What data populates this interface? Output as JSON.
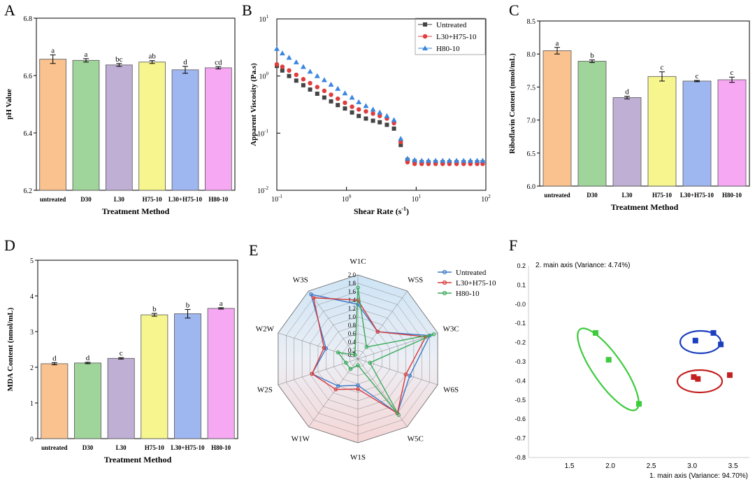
{
  "colors": {
    "untreated": "#f9c28f",
    "d30": "#9fd49a",
    "l30": "#c0afd5",
    "h75": "#f7f58e",
    "l30h75": "#9fb7f0",
    "h80": "#f7a8f3",
    "series_untreated": "#3a78c8",
    "series_l30h75": "#d63a3a",
    "series_h80": "#3aaa5a",
    "visc_untreated": "#444444",
    "visc_l30h75": "#e03c3c",
    "visc_h80": "#3a86e0",
    "pca_green": "#3ecb3e",
    "pca_blue": "#1c3fbf",
    "pca_red": "#c42020"
  },
  "chart_data": [
    {
      "id": "A",
      "type": "bar",
      "panel_label": "A",
      "title": "",
      "xlabel": "Treatment Method",
      "ylabel": "pH  Value",
      "ylim": [
        6.2,
        6.8
      ],
      "yticks": [
        "6.2",
        "6.4",
        "6.6",
        "6.8"
      ],
      "categories": [
        "untreated",
        "D30",
        "L30",
        "H75-10",
        "L30+H75-10",
        "H80-10"
      ],
      "values": [
        6.657,
        6.653,
        6.637,
        6.647,
        6.62,
        6.627
      ],
      "errors": [
        0.015,
        0.006,
        0.005,
        0.005,
        0.012,
        0.004
      ],
      "letters": [
        "a",
        "a",
        "bc",
        "ab",
        "d",
        "cd"
      ],
      "colors": [
        "#f9c28f",
        "#9fd49a",
        "#c0afd5",
        "#f7f58e",
        "#9fb7f0",
        "#f7a8f3"
      ]
    },
    {
      "id": "B",
      "type": "scatter",
      "panel_label": "B",
      "xscale": "log",
      "yscale": "log",
      "xlabel": "Shear Rate (s",
      "xlabel_sup": "-1",
      "xlabel_end": ")",
      "ylabel": "Apparent Viscosity  (Pa.s)",
      "xlim": [
        0.1,
        100
      ],
      "ylim": [
        0.01,
        10
      ],
      "xticks": [
        {
          "v": 0.1,
          "base": "10",
          "exp": "-1"
        },
        {
          "v": 1,
          "base": "10",
          "exp": "0"
        },
        {
          "v": 10,
          "base": "10",
          "exp": "1"
        },
        {
          "v": 100,
          "base": "10",
          "exp": "2"
        }
      ],
      "yticks": [
        {
          "v": 0.01,
          "base": "10",
          "exp": "-2"
        },
        {
          "v": 0.1,
          "base": "10",
          "exp": "-1"
        },
        {
          "v": 1,
          "base": "10",
          "exp": "0"
        },
        {
          "v": 10,
          "base": "10",
          "exp": "1"
        }
      ],
      "legend": "top-right",
      "series": [
        {
          "name": "Untreated",
          "marker": "square",
          "color": "#444444",
          "x": [
            0.1,
            0.12,
            0.15,
            0.19,
            0.24,
            0.3,
            0.38,
            0.48,
            0.6,
            0.75,
            0.95,
            1.2,
            1.5,
            1.9,
            2.4,
            3.0,
            3.8,
            4.8,
            6.0,
            7.5,
            9.5,
            12,
            15,
            19,
            24,
            30,
            38,
            48,
            60,
            75,
            90
          ],
          "y": [
            1.5,
            1.25,
            1.0,
            0.83,
            0.69,
            0.58,
            0.49,
            0.42,
            0.36,
            0.31,
            0.27,
            0.23,
            0.2,
            0.18,
            0.165,
            0.155,
            0.14,
            0.12,
            0.062,
            0.034,
            0.032,
            0.031,
            0.031,
            0.031,
            0.031,
            0.031,
            0.031,
            0.031,
            0.031,
            0.031,
            0.031
          ]
        },
        {
          "name": "L30+H75-10",
          "marker": "circle",
          "color": "#e03c3c",
          "x": [
            0.1,
            0.12,
            0.15,
            0.19,
            0.24,
            0.3,
            0.38,
            0.48,
            0.6,
            0.75,
            0.95,
            1.2,
            1.5,
            1.9,
            2.4,
            3.0,
            3.8,
            4.8,
            6.0,
            7.5,
            9.5,
            12,
            15,
            19,
            24,
            30,
            38,
            48,
            60,
            75,
            90
          ],
          "y": [
            1.6,
            1.45,
            1.25,
            1.05,
            0.88,
            0.75,
            0.64,
            0.55,
            0.47,
            0.4,
            0.34,
            0.29,
            0.26,
            0.24,
            0.22,
            0.2,
            0.18,
            0.15,
            0.07,
            0.031,
            0.029,
            0.029,
            0.029,
            0.029,
            0.029,
            0.029,
            0.029,
            0.029,
            0.029,
            0.029,
            0.029
          ]
        },
        {
          "name": "H80-10",
          "marker": "triangle",
          "color": "#3a86e0",
          "x": [
            0.1,
            0.12,
            0.15,
            0.19,
            0.24,
            0.3,
            0.38,
            0.48,
            0.6,
            0.75,
            0.95,
            1.2,
            1.5,
            1.9,
            2.4,
            3.0,
            3.8,
            4.8,
            6.0,
            7.5,
            9.5,
            12,
            15,
            19,
            24,
            30,
            38,
            48,
            60,
            75,
            90
          ],
          "y": [
            3.0,
            2.5,
            2.1,
            1.75,
            1.45,
            1.2,
            1.0,
            0.85,
            0.71,
            0.6,
            0.5,
            0.42,
            0.35,
            0.3,
            0.26,
            0.23,
            0.2,
            0.17,
            0.08,
            0.036,
            0.034,
            0.033,
            0.033,
            0.033,
            0.033,
            0.033,
            0.033,
            0.033,
            0.033,
            0.033,
            0.033
          ]
        }
      ]
    },
    {
      "id": "C",
      "type": "bar",
      "panel_label": "C",
      "xlabel": "Treatment Method",
      "ylabel": "Riboflavin Content  (nmol/mL)",
      "ylim": [
        6.0,
        8.5
      ],
      "yticks": [
        "6.0",
        "6.5",
        "7.0",
        "7.5",
        "8.0",
        "8.5"
      ],
      "categories": [
        "untreated",
        "D30",
        "L30",
        "H75-10",
        "L30+H75-10",
        "H80-10"
      ],
      "values": [
        8.05,
        7.89,
        7.34,
        7.66,
        7.59,
        7.61
      ],
      "errors": [
        0.05,
        0.02,
        0.02,
        0.07,
        0.01,
        0.04
      ],
      "letters": [
        "a",
        "b",
        "d",
        "c",
        "c",
        "c"
      ],
      "colors": [
        "#f9c28f",
        "#9fd49a",
        "#c0afd5",
        "#f7f58e",
        "#9fb7f0",
        "#f7a8f3"
      ]
    },
    {
      "id": "D",
      "type": "bar",
      "panel_label": "D",
      "xlabel": "Treatment Method",
      "ylabel": "MDA Content  (nmol/mL)",
      "ylim": [
        0,
        5
      ],
      "yticks": [
        "0",
        "1",
        "2",
        "3",
        "4",
        "5"
      ],
      "categories": [
        "untreated",
        "D30",
        "L30",
        "H75-10",
        "L30+H75-10",
        "H80-10"
      ],
      "values": [
        2.1,
        2.12,
        2.25,
        3.47,
        3.5,
        3.65
      ],
      "errors": [
        0.03,
        0.02,
        0.02,
        0.04,
        0.12,
        0.02
      ],
      "letters": [
        "d",
        "d",
        "c",
        "b",
        "b",
        "a"
      ],
      "colors": [
        "#f9c28f",
        "#9fd49a",
        "#c0afd5",
        "#f7f58e",
        "#9fb7f0",
        "#f7a8f3"
      ]
    },
    {
      "id": "E",
      "type": "radar",
      "panel_label": "E",
      "axes": [
        "W1C",
        "W5S",
        "W3C",
        "W6S",
        "W5C",
        "W1S",
        "W1W",
        "W2S",
        "W2W",
        "W3S"
      ],
      "rlim": [
        0,
        2.0
      ],
      "rticks": [
        "0.1",
        "0.2",
        "0.4",
        "0.6",
        "0.8",
        "1.0",
        "1.2",
        "1.4",
        "1.6",
        "1.8",
        "2.0"
      ],
      "legend": "top-right",
      "series": [
        {
          "name": "Untreated",
          "color": "#3a78c8",
          "values": [
            1.3,
            0.8,
            1.8,
            1.3,
            1.6,
            0.63,
            0.8,
            1.15,
            0.8,
            1.9
          ]
        },
        {
          "name": "L30+H75-10",
          "color": "#d63a3a",
          "values": [
            1.4,
            0.8,
            1.7,
            1.2,
            1.6,
            0.72,
            0.9,
            1.15,
            0.85,
            1.8
          ]
        },
        {
          "name": "H80-10",
          "color": "#3aaa5a",
          "values": [
            1.7,
            0.35,
            1.9,
            0.3,
            1.65,
            0.15,
            0.3,
            0.3,
            0.5,
            0.12
          ]
        }
      ]
    },
    {
      "id": "F",
      "type": "scatter",
      "panel_label": "F",
      "xlabel": "1. main axis (Variance: 94.70%)",
      "ylabel": "2. main axis (Variance: 4.74%)",
      "xlim": [
        1.0,
        3.7
      ],
      "ylim": [
        -0.8,
        0.2
      ],
      "xticks": [
        "1.5",
        "2.0",
        "2.5",
        "3.0",
        "3.5"
      ],
      "yticks": [
        "0.2",
        "0.1",
        "-0.0",
        "-0.1",
        "-0.2",
        "-0.3",
        "-0.4",
        "-0.5",
        "-0.6",
        "-0.7",
        "-0.8"
      ],
      "series": [
        {
          "name": "green",
          "color": "#3ecb3e",
          "x": [
            1.82,
            1.98,
            2.35
          ],
          "y": [
            -0.15,
            -0.29,
            -0.52
          ]
        },
        {
          "name": "blue",
          "color": "#1c3fbf",
          "x": [
            3.04,
            3.26,
            3.35
          ],
          "y": [
            -0.19,
            -0.15,
            -0.21
          ]
        },
        {
          "name": "red",
          "color": "#c42020",
          "x": [
            3.02,
            3.07,
            3.46
          ],
          "y": [
            -0.38,
            -0.39,
            -0.37
          ]
        }
      ]
    }
  ]
}
